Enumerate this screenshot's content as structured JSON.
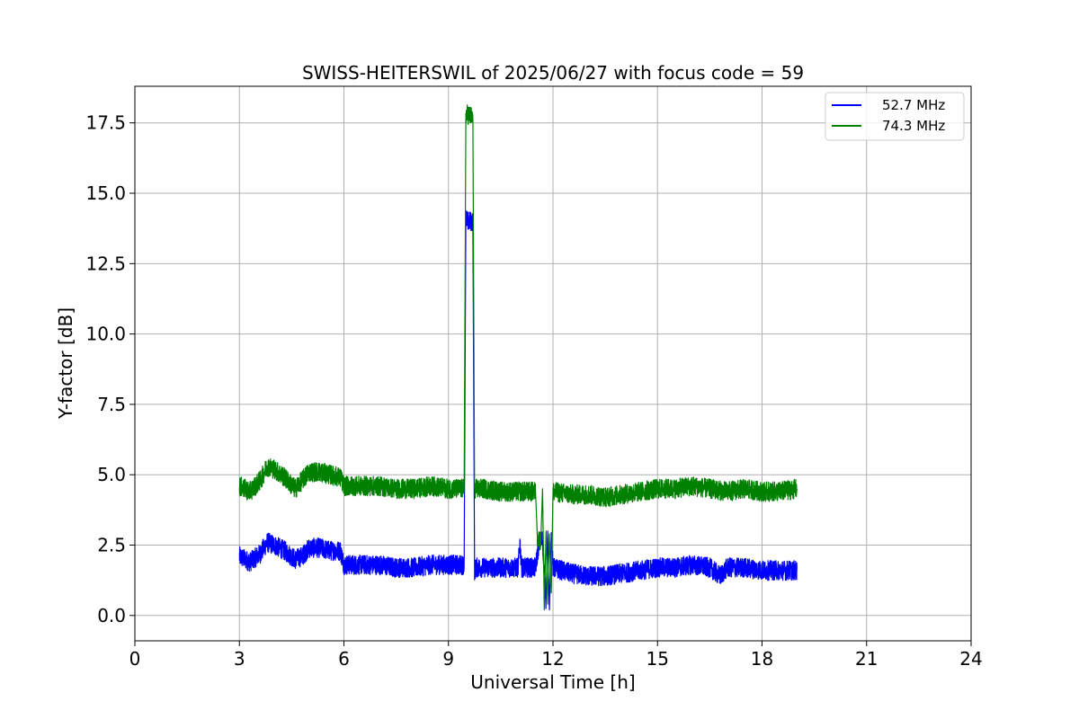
{
  "chart_data": {
    "type": "line",
    "title": "SWISS-HEITERSWIL of 2025/06/27 with focus code = 59",
    "xlabel": "Universal Time [h]",
    "ylabel": "Y-factor [dB]",
    "xlim": [
      0,
      24
    ],
    "ylim": [
      -0.9,
      18.8
    ],
    "xticks": [
      0,
      3,
      6,
      9,
      12,
      15,
      18,
      21,
      24
    ],
    "yticks": [
      0.0,
      2.5,
      5.0,
      7.5,
      10.0,
      12.5,
      15.0,
      17.5
    ],
    "ytick_labels": [
      "0.0",
      "2.5",
      "5.0",
      "7.5",
      "10.0",
      "12.5",
      "15.0",
      "17.5"
    ],
    "grid": true,
    "legend_position": "top-right",
    "series": [
      {
        "name": "52.7 MHz",
        "color": "#0000ff",
        "x": [
          3.0,
          3.3,
          3.6,
          3.8,
          4.0,
          4.3,
          4.6,
          4.8,
          5.0,
          5.3,
          5.6,
          5.9,
          6.0,
          6.5,
          7.0,
          7.5,
          8.0,
          8.5,
          9.0,
          9.3,
          9.45,
          9.5,
          9.55,
          9.7,
          9.75,
          9.8,
          10.0,
          10.5,
          11.0,
          11.05,
          11.1,
          11.5,
          11.6,
          11.7,
          11.8,
          11.85,
          11.9,
          11.95,
          12.0,
          12.5,
          13.0,
          13.5,
          14.0,
          14.5,
          15.0,
          15.5,
          16.0,
          16.5,
          16.8,
          17.0,
          17.5,
          18.0,
          18.5,
          19.0
        ],
        "y": [
          2.1,
          1.9,
          2.2,
          2.6,
          2.5,
          2.3,
          2.0,
          2.1,
          2.4,
          2.4,
          2.3,
          2.3,
          1.8,
          1.8,
          1.8,
          1.7,
          1.7,
          1.8,
          1.8,
          1.8,
          1.8,
          14.1,
          14.0,
          14.0,
          1.6,
          1.7,
          1.7,
          1.7,
          1.7,
          2.6,
          1.7,
          1.7,
          2.6,
          2.7,
          0.5,
          3.0,
          0.2,
          2.8,
          1.7,
          1.5,
          1.4,
          1.4,
          1.5,
          1.6,
          1.7,
          1.7,
          1.8,
          1.7,
          1.4,
          1.7,
          1.7,
          1.6,
          1.6,
          1.6
        ],
        "noise_band": 0.35
      },
      {
        "name": "74.3 MHz",
        "color": "#008000",
        "x": [
          3.0,
          3.3,
          3.6,
          3.8,
          4.0,
          4.3,
          4.6,
          4.8,
          5.0,
          5.3,
          5.6,
          5.9,
          6.0,
          6.5,
          7.0,
          7.5,
          8.0,
          8.5,
          9.0,
          9.3,
          9.45,
          9.5,
          9.55,
          9.7,
          9.75,
          9.8,
          10.0,
          10.5,
          11.0,
          11.5,
          11.55,
          11.6,
          11.65,
          11.7,
          11.75,
          11.8,
          11.85,
          11.9,
          11.95,
          12.0,
          12.5,
          13.0,
          13.5,
          14.0,
          14.5,
          15.0,
          15.5,
          16.0,
          16.5,
          17.0,
          17.5,
          18.0,
          18.5,
          19.0
        ],
        "y": [
          4.6,
          4.4,
          4.8,
          5.3,
          5.2,
          4.9,
          4.5,
          4.8,
          5.1,
          5.1,
          5.0,
          4.9,
          4.6,
          4.6,
          4.6,
          4.5,
          4.5,
          4.6,
          4.5,
          4.5,
          4.5,
          17.8,
          17.8,
          17.7,
          4.5,
          4.5,
          4.5,
          4.4,
          4.4,
          4.4,
          2.8,
          2.7,
          2.6,
          4.5,
          0.2,
          3.0,
          0.4,
          2.9,
          0.8,
          4.4,
          4.3,
          4.3,
          4.2,
          4.3,
          4.4,
          4.5,
          4.5,
          4.6,
          4.5,
          4.4,
          4.5,
          4.4,
          4.4,
          4.5
        ],
        "noise_band": 0.35
      }
    ]
  }
}
